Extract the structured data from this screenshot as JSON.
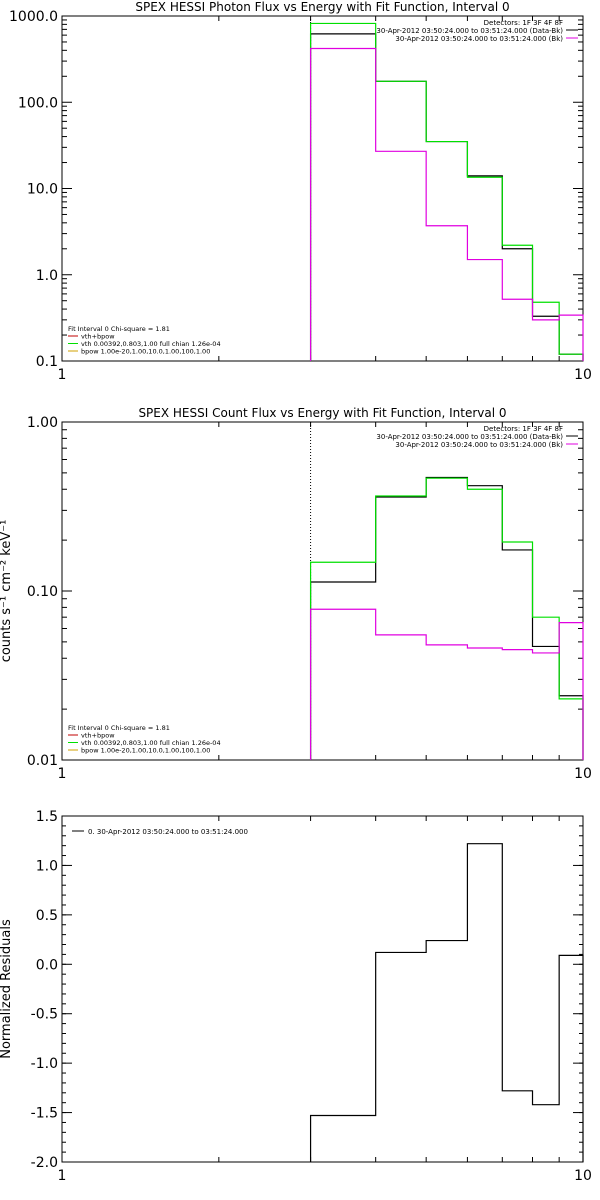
{
  "colors": {
    "total": "#000000",
    "vth": "#00e000",
    "bpow": "#e000e0",
    "vth_plus_bpow": "#c00000"
  },
  "chart_data": [
    {
      "type": "line",
      "title": "SPEX HESSI Photon Flux vs Energy with Fit Function, Interval 0",
      "xlabel": "",
      "ylabel": "",
      "xscale": "log",
      "yscale": "log",
      "xlim": [
        1,
        10
      ],
      "ylim": [
        0.1,
        1000
      ],
      "xticks": [
        "1",
        "10"
      ],
      "yticks": [
        "0.1",
        "1.0",
        "10.0",
        "100.0",
        "1000.0"
      ],
      "legend_top": [
        "Detectors: 1F 3F 4F 8F",
        "30-Apr-2012 03:50:24.000 to 03:51:24.000 (Data-Bk)",
        "30-Apr-2012 03:50:24.000 to 03:51:24.000 (Bk)"
      ],
      "legend_bottom": [
        "Fit Interval 0   Chi-square = 1.81",
        "vth+bpow",
        "vth 0.00392,0.803,1.00  full chian 1.26e-04",
        "bpow 1.00e-20,1.00,10.0,1.00,100,1.00"
      ],
      "bin_edges": [
        3,
        4,
        5,
        6,
        7,
        8,
        9,
        10
      ],
      "series": [
        {
          "name": "Data-Bk",
          "values": [
            620,
            175,
            35,
            14,
            2.0,
            0.33,
            0.12
          ]
        },
        {
          "name": "vth",
          "values": [
            820,
            175,
            35,
            13.5,
            2.2,
            0.48,
            0.12
          ]
        },
        {
          "name": "Bk",
          "values": [
            420,
            27,
            3.7,
            1.5,
            0.52,
            0.3,
            0.34
          ]
        }
      ]
    },
    {
      "type": "line",
      "title": "SPEX HESSI Count Flux vs Energy with Fit Function, Interval 0",
      "xlabel": "",
      "ylabel": "counts s⁻¹ cm⁻² keV⁻¹",
      "xscale": "log",
      "yscale": "log",
      "xlim": [
        1,
        10
      ],
      "ylim": [
        0.01,
        1
      ],
      "xticks": [
        "1",
        "10"
      ],
      "yticks": [
        "0.01",
        "0.10",
        "1.00"
      ],
      "legend_top": [
        "Detectors: 1F 3F 4F 8F",
        "30-Apr-2012 03:50:24.000 to 03:51:24.000 (Data-Bk)",
        "30-Apr-2012 03:50:24.000 to 03:51:24.000 (Bk)"
      ],
      "legend_bottom": [
        "Fit Interval 0   Chi-square = 1.81",
        "vth+bpow",
        "vth 0.00392,0.803,1.00  full chian 1.26e-04",
        "bpow 1.00e-20,1.00,10.0,1.00,100,1.00"
      ],
      "bin_edges": [
        3,
        4,
        5,
        6,
        7,
        8,
        9,
        10
      ],
      "series": [
        {
          "name": "Data-Bk",
          "values": [
            0.113,
            0.36,
            0.47,
            0.42,
            0.175,
            0.047,
            0.024
          ]
        },
        {
          "name": "vth",
          "values": [
            0.148,
            0.365,
            0.465,
            0.4,
            0.195,
            0.07,
            0.023
          ]
        },
        {
          "name": "Bk",
          "values": [
            0.078,
            0.055,
            0.048,
            0.046,
            0.045,
            0.043,
            0.065
          ]
        }
      ]
    },
    {
      "type": "line",
      "title": "",
      "xlabel": "",
      "ylabel": "Normalized Residuals",
      "xscale": "log",
      "yscale": "linear",
      "xlim": [
        1,
        10
      ],
      "ylim": [
        -2.0,
        1.5
      ],
      "xticks": [
        "1",
        "10"
      ],
      "yticks": [
        "-2.0",
        "-1.5",
        "-1.0",
        "-0.5",
        "0.0",
        "0.5",
        "1.0",
        "1.5"
      ],
      "legend_top": [
        "0. 30-Apr-2012 03:50:24.000 to 03:51:24.000"
      ],
      "bin_edges": [
        3,
        4,
        5,
        6,
        7,
        8,
        9,
        10
      ],
      "series": [
        {
          "name": "0. 30-Apr-2012 03:50:24.000 to 03:51:24.000",
          "values": [
            -1.53,
            0.12,
            0.24,
            1.22,
            -1.28,
            -1.42,
            0.09
          ]
        }
      ]
    }
  ]
}
